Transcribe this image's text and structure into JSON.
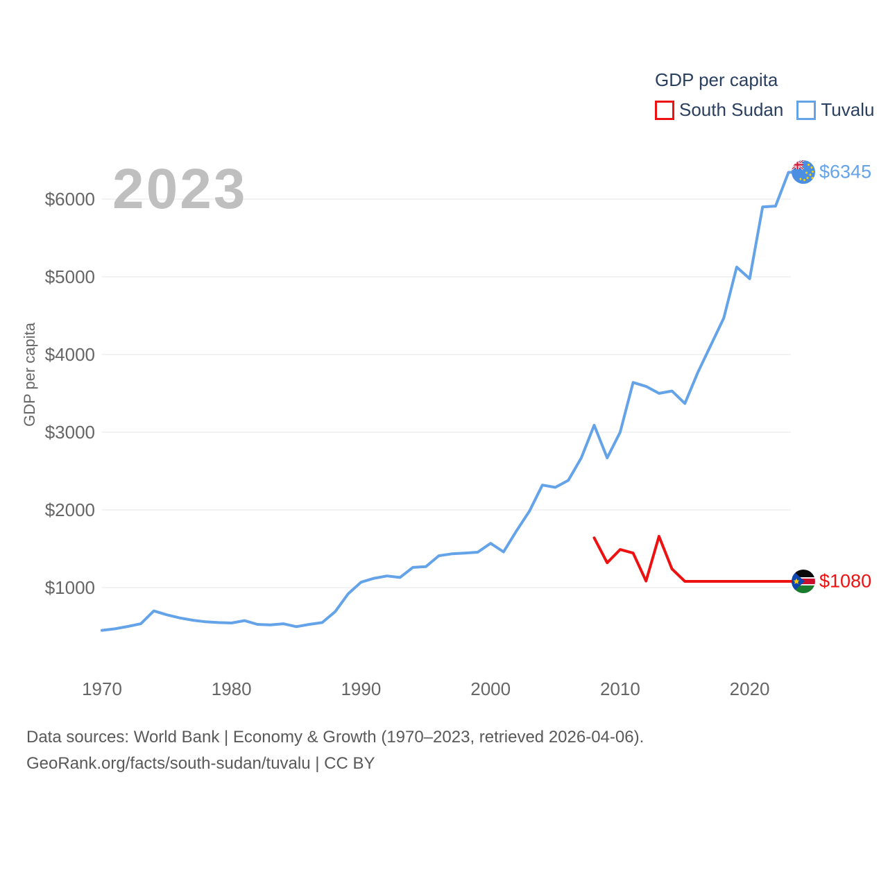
{
  "legend": {
    "title": "GDP per capita",
    "items": [
      {
        "id": "south-sudan",
        "label": "South Sudan",
        "color": "#ee1111"
      },
      {
        "id": "tuvalu",
        "label": "Tuvalu",
        "color": "#64a3e8"
      }
    ]
  },
  "watermark": "2023",
  "y_axis_title": "GDP per capita",
  "chart_data": {
    "type": "line",
    "title": "GDP per capita",
    "xlabel": "",
    "ylabel": "GDP per capita",
    "x_ticks": [
      1970,
      1980,
      1990,
      2000,
      2010,
      2020
    ],
    "y_ticks": [
      1000,
      2000,
      3000,
      4000,
      5000,
      6000
    ],
    "xlim": [
      1970,
      2023
    ],
    "ylim": [
      450,
      6500
    ],
    "grid": "horizontal-only",
    "legend_position": "top-right",
    "series": [
      {
        "id": "tuvalu",
        "name": "Tuvalu",
        "color": "#64a3e8",
        "start_year": 1970,
        "end_label": "$6345",
        "values": [
          450,
          470,
          500,
          535,
          700,
          650,
          610,
          580,
          560,
          550,
          545,
          575,
          527,
          520,
          535,
          497,
          527,
          550,
          690,
          920,
          1070,
          1120,
          1150,
          1130,
          1260,
          1270,
          1410,
          1435,
          1445,
          1455,
          1570,
          1460,
          1730,
          1985,
          2320,
          2290,
          2380,
          2670,
          3090,
          2670,
          3000,
          3640,
          3590,
          3500,
          3530,
          3370,
          3770,
          4120,
          4470,
          5125,
          4975,
          5900,
          5910,
          6345
        ]
      },
      {
        "id": "south-sudan",
        "name": "South Sudan",
        "color": "#ee1111",
        "start_year": 2008,
        "end_label": "$1080",
        "values": [
          1640,
          1320,
          1490,
          1445,
          1085,
          1660,
          1240,
          1080,
          1080,
          1080,
          1080,
          1080,
          1080,
          1080,
          1080,
          1080
        ]
      }
    ]
  },
  "footer": {
    "line1": "Data sources: World Bank | Economy & Growth (1970–2023, retrieved 2026-04-06).",
    "line2": "GeoRank.org/facts/south-sudan/tuvalu | CC BY"
  }
}
